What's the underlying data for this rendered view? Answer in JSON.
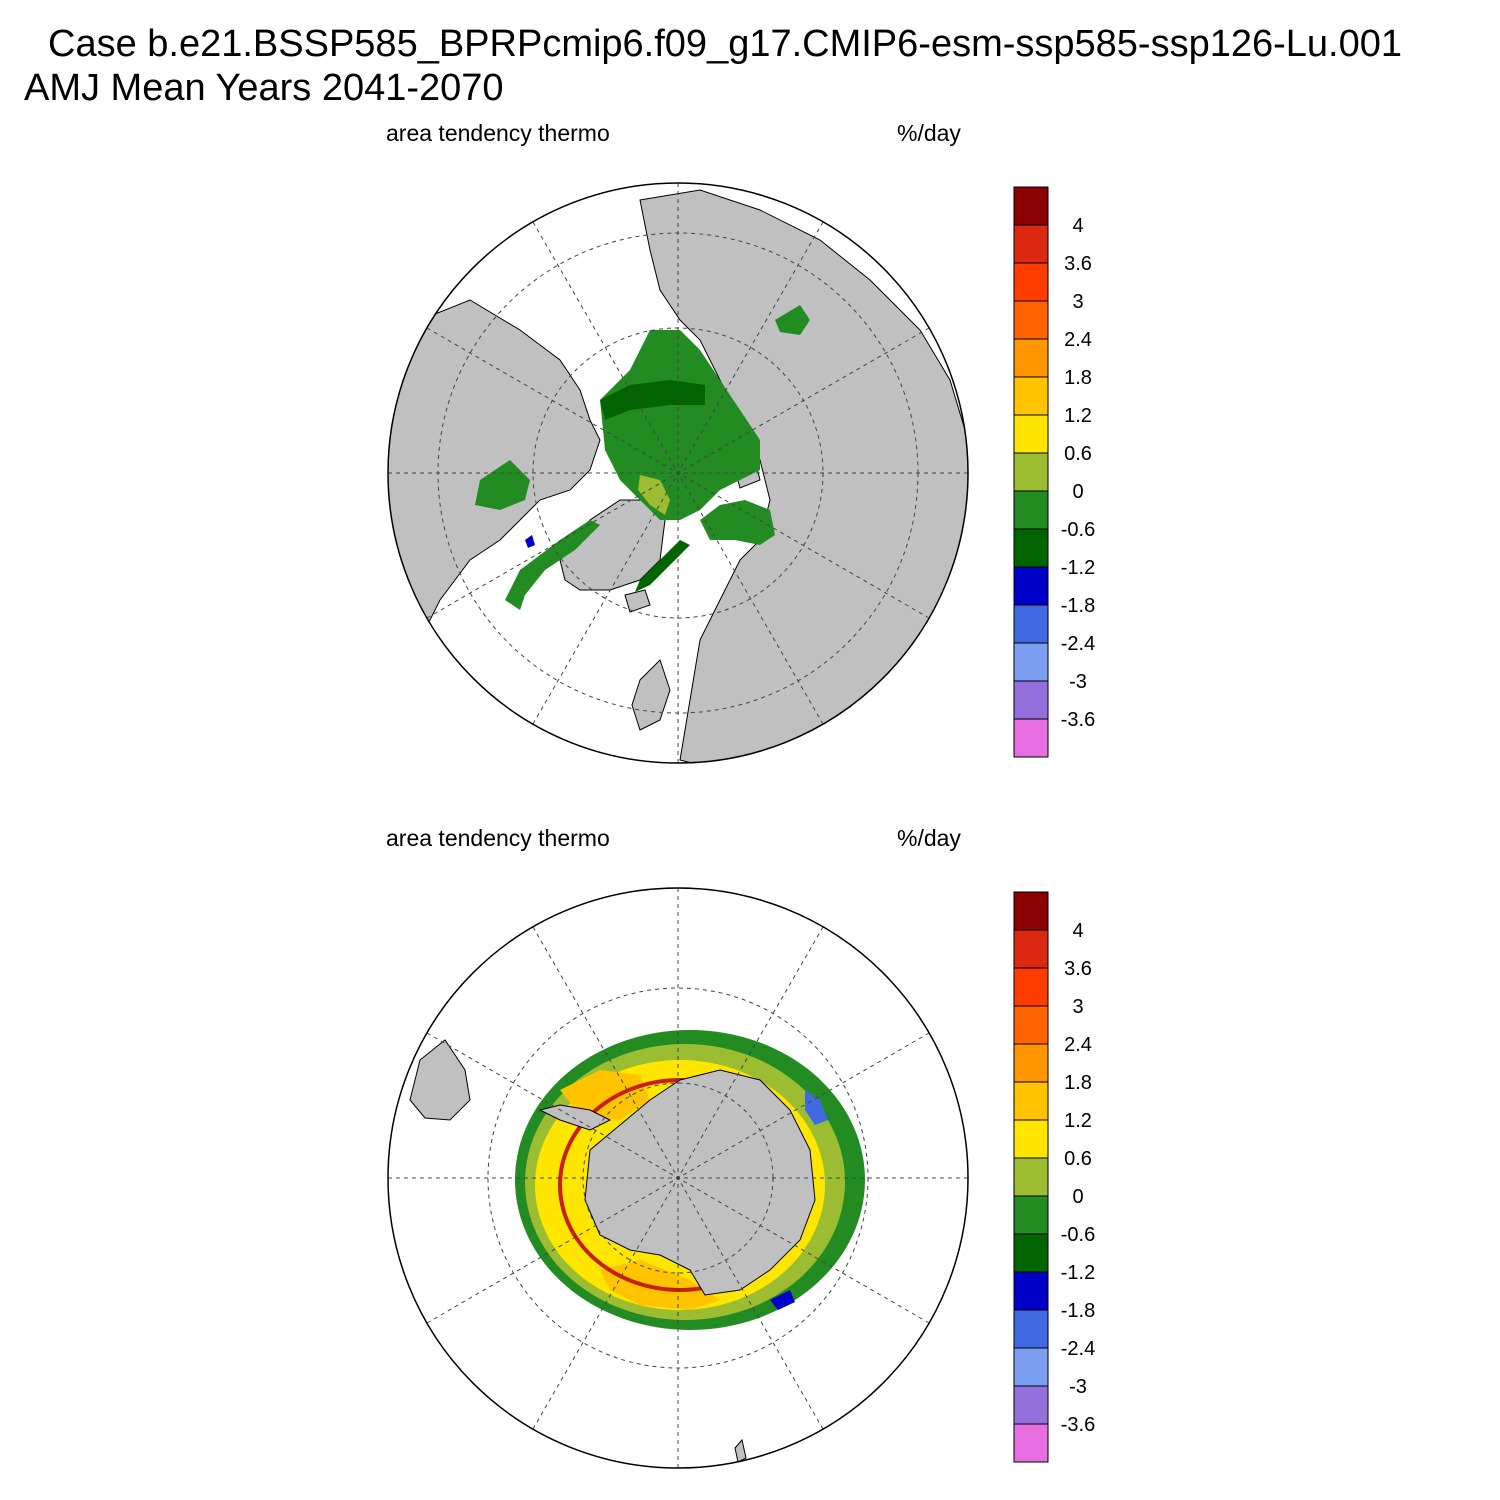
{
  "header": {
    "case_line": "Case b.e21.BSSP585_BPRPcmip6.f09_g17.CMIP6-esm-ssp585-ssp126-Lu.001",
    "period_line": "AMJ Mean   Years 2041-2070"
  },
  "panels": [
    {
      "left_label": "area tendency thermo",
      "right_label": "%/day"
    },
    {
      "left_label": "area tendency thermo",
      "right_label": "%/day"
    }
  ],
  "colorbar": {
    "labels": [
      "4",
      "3.6",
      "3",
      "2.4",
      "1.8",
      "1.2",
      "0.6",
      "0",
      "-0.6",
      "-1.2",
      "-1.8",
      "-2.4",
      "-3",
      "-3.6"
    ],
    "colors": [
      "#8b0000",
      "#dc2a12",
      "#ff3c00",
      "#ff6400",
      "#ff9600",
      "#ffc300",
      "#ffe600",
      "#9cbd32",
      "#228b22",
      "#006400",
      "#0000c8",
      "#4169e1",
      "#7b9ef0",
      "#9370db",
      "#e66ee0"
    ]
  },
  "colors": {
    "land": "#c0c0c0",
    "ocean": "#ffffff",
    "ice_dark": "#006400",
    "ice_mid": "#228b22",
    "ice_light": "#9cbd32",
    "ice_yellow": "#ffe600",
    "ice_gold": "#ffc300",
    "edge_red": "#c81e0a",
    "ice_blue": "#4169e1"
  }
}
